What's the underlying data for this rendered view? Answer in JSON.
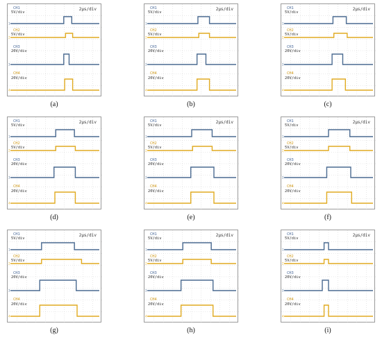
{
  "colors": {
    "ch_blue": "#4a6a90",
    "ch_gold": "#e0aa20",
    "grid": "#c8c8c8",
    "frame": "#9a9a9a"
  },
  "chart_data": [
    {
      "type": "line",
      "caption": "(a)",
      "timebase": "2μs/div",
      "channels": [
        {
          "name": "CH1",
          "scale": "5V/div",
          "edges": [
            0.0,
            0.6,
            0.69
          ]
        },
        {
          "name": "CH2",
          "scale": "5V/div",
          "edges": [
            0.0,
            0.62,
            0.7
          ]
        },
        {
          "name": "CH3",
          "scale": "20V/div",
          "edges": [
            0.0,
            0.6,
            0.66
          ]
        },
        {
          "name": "CH4",
          "scale": "20V/div",
          "edges": [
            0.0,
            0.61,
            0.7
          ]
        }
      ]
    },
    {
      "type": "line",
      "caption": "(b)",
      "timebase": "2μs/div",
      "channels": [
        {
          "name": "CH1",
          "scale": "5V/div",
          "edges": [
            0.0,
            0.57,
            0.7
          ]
        },
        {
          "name": "CH2",
          "scale": "5V/div",
          "edges": [
            0.0,
            0.58,
            0.7
          ]
        },
        {
          "name": "CH3",
          "scale": "20V/div",
          "edges": [
            0.0,
            0.56,
            0.66
          ]
        },
        {
          "name": "CH4",
          "scale": "20V/div",
          "edges": [
            0.0,
            0.56,
            0.7
          ]
        }
      ]
    },
    {
      "type": "line",
      "caption": "(c)",
      "timebase": "2μs/div",
      "channels": [
        {
          "name": "CH1",
          "scale": "5V/div",
          "edges": [
            0.0,
            0.55,
            0.7
          ]
        },
        {
          "name": "CH2",
          "scale": "5V/div",
          "edges": [
            0.0,
            0.56,
            0.71
          ]
        },
        {
          "name": "CH3",
          "scale": "20V/div",
          "edges": [
            0.0,
            0.54,
            0.66
          ]
        },
        {
          "name": "CH4",
          "scale": "20V/div",
          "edges": [
            0.0,
            0.54,
            0.69
          ]
        }
      ]
    },
    {
      "type": "line",
      "caption": "(d)",
      "timebase": "2μs/div",
      "channels": [
        {
          "name": "CH1",
          "scale": "5V/div",
          "edges": [
            0.0,
            0.51,
            0.72
          ]
        },
        {
          "name": "CH2",
          "scale": "5V/div",
          "edges": [
            0.0,
            0.51,
            0.73
          ]
        },
        {
          "name": "CH3",
          "scale": "20V/div",
          "edges": [
            0.0,
            0.49,
            0.73
          ]
        },
        {
          "name": "CH4",
          "scale": "20V/div",
          "edges": [
            0.0,
            0.5,
            0.73
          ]
        }
      ]
    },
    {
      "type": "line",
      "caption": "(e)",
      "timebase": "2μs/div",
      "channels": [
        {
          "name": "CH1",
          "scale": "5V/div",
          "edges": [
            0.0,
            0.5,
            0.73
          ]
        },
        {
          "name": "CH2",
          "scale": "5V/div",
          "edges": [
            0.0,
            0.51,
            0.73
          ]
        },
        {
          "name": "CH3",
          "scale": "20V/div",
          "edges": [
            0.0,
            0.49,
            0.75
          ]
        },
        {
          "name": "CH4",
          "scale": "20V/div",
          "edges": [
            0.0,
            0.49,
            0.75
          ]
        }
      ]
    },
    {
      "type": "line",
      "caption": "(f)",
      "timebase": "2μs/div",
      "channels": [
        {
          "name": "CH1",
          "scale": "5V/div",
          "edges": [
            0.0,
            0.5,
            0.74
          ]
        },
        {
          "name": "CH2",
          "scale": "5V/div",
          "edges": [
            0.0,
            0.5,
            0.74
          ]
        },
        {
          "name": "CH3",
          "scale": "20V/div",
          "edges": [
            0.0,
            0.48,
            0.75
          ]
        },
        {
          "name": "CH4",
          "scale": "20V/div",
          "edges": [
            0.0,
            0.48,
            0.76
          ]
        }
      ]
    },
    {
      "type": "line",
      "caption": "(g)",
      "timebase": "2μs/div",
      "channels": [
        {
          "name": "CH1",
          "scale": "5V/div",
          "edges": [
            0.0,
            0.35,
            0.72
          ]
        },
        {
          "name": "CH2",
          "scale": "5V/div",
          "edges": [
            0.0,
            0.35,
            0.8
          ]
        },
        {
          "name": "CH3",
          "scale": "20V/div",
          "edges": [
            0.0,
            0.33,
            0.74
          ]
        },
        {
          "name": "CH4",
          "scale": "20V/div",
          "edges": [
            0.0,
            0.33,
            0.75
          ]
        }
      ]
    },
    {
      "type": "line",
      "caption": "(h)",
      "timebase": "2μs/div",
      "channels": [
        {
          "name": "CH1",
          "scale": "5V/div",
          "edges": [
            0.0,
            0.4,
            0.72
          ]
        },
        {
          "name": "CH2",
          "scale": "5V/div",
          "edges": [
            0.0,
            0.4,
            0.72
          ]
        },
        {
          "name": "CH3",
          "scale": "20V/div",
          "edges": [
            0.0,
            0.38,
            0.74
          ]
        },
        {
          "name": "CH4",
          "scale": "20V/div",
          "edges": [
            0.0,
            0.38,
            0.74
          ]
        }
      ]
    },
    {
      "type": "line",
      "caption": "(i)",
      "timebase": "2μs/div",
      "channels": [
        {
          "name": "CH1",
          "scale": "5V/div",
          "edges": [
            0.0,
            0.45,
            0.5
          ]
        },
        {
          "name": "CH2",
          "scale": "5V/div",
          "edges": [
            0.0,
            0.45,
            0.5
          ]
        },
        {
          "name": "CH3",
          "scale": "20V/div",
          "edges": [
            0.0,
            0.43,
            0.5
          ]
        },
        {
          "name": "CH4",
          "scale": "20V/div",
          "edges": [
            0.0,
            0.45,
            0.5
          ]
        }
      ]
    }
  ]
}
